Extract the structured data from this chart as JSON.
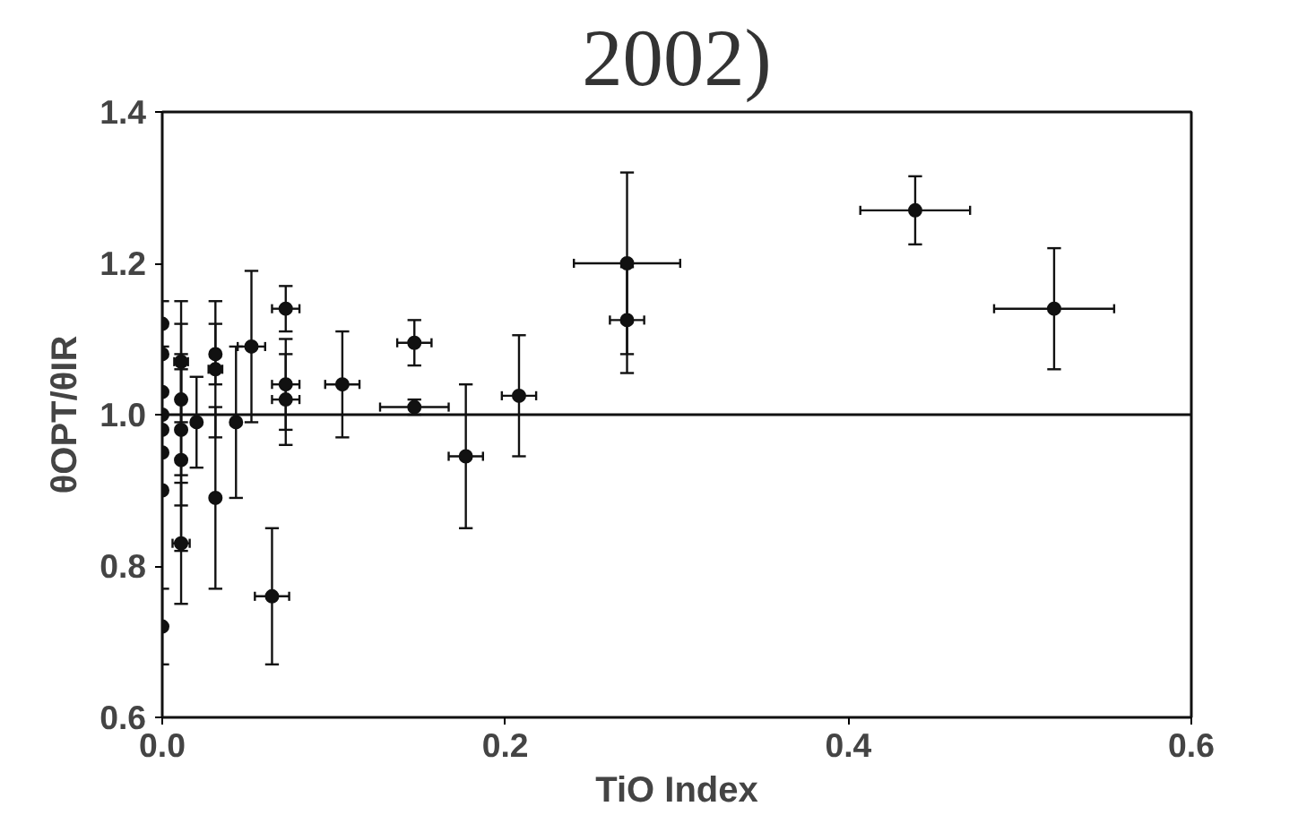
{
  "chart_data": {
    "type": "scatter",
    "title": "2002)",
    "xlabel": "TiO Index",
    "ylabel": "θOPT/θIR",
    "x": [
      0,
      0,
      0,
      0,
      0,
      0,
      0,
      0,
      0.011,
      0.011,
      0.011,
      0.011,
      0.011,
      0.02,
      0.031,
      0.031,
      0.031,
      0.043,
      0.052,
      0.072,
      0.072,
      0.072,
      0.064,
      0.105,
      0.147,
      0.147,
      0.177,
      0.208,
      0.271,
      0.271,
      0.439,
      0.52
    ],
    "values": [
      1.12,
      1.08,
      1.03,
      1.0,
      0.98,
      0.95,
      0.9,
      0.72,
      1.07,
      1.02,
      0.98,
      0.94,
      0.83,
      0.99,
      1.08,
      1.06,
      0.89,
      0.99,
      1.09,
      1.14,
      1.04,
      1.02,
      0.76,
      1.04,
      1.095,
      1.01,
      0.945,
      1.025,
      1.2,
      1.125,
      1.27,
      1.14
    ],
    "errors": [
      0.03,
      null,
      null,
      null,
      null,
      null,
      null,
      0.05,
      0.08,
      0.1,
      0.1,
      0.12,
      0.08,
      0.06,
      0.04,
      0.09,
      0.12,
      0.1,
      0.1,
      0.03,
      0.06,
      0.06,
      0.09,
      0.07,
      0.03,
      0.01,
      0.095,
      0.08,
      0.12,
      0.07,
      0.045,
      0.08
    ],
    "xerrors": [
      null,
      null,
      null,
      null,
      null,
      null,
      null,
      null,
      0.004,
      null,
      null,
      null,
      0.005,
      null,
      null,
      0.004,
      null,
      null,
      0.008,
      0.008,
      0.008,
      0.008,
      0.01,
      0.01,
      0.01,
      0.02,
      0.01,
      0.01,
      0.031,
      0.01,
      0.032,
      0.035
    ],
    "color": "#111111",
    "marker": "circle",
    "xlim": [
      0,
      0.6
    ],
    "ylim": [
      0.6,
      1.4
    ],
    "xticks": [
      {
        "value": 0,
        "label": "0.0"
      },
      0.2,
      0.4,
      0.6
    ],
    "yticks": [
      0.6,
      0.8,
      {
        "value": 1,
        "label": "1.0"
      },
      1.2,
      1.4
    ],
    "ref_lines": [
      {
        "axis": "y",
        "value": 1.0,
        "label": null
      }
    ],
    "grid": false
  }
}
